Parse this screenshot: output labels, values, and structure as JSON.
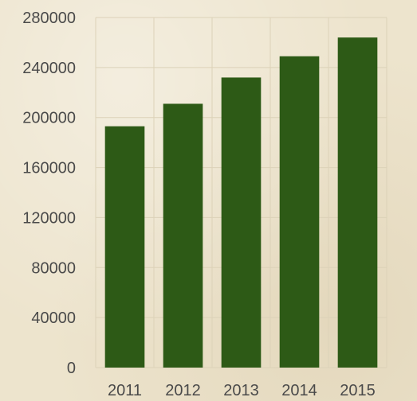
{
  "chart_data": {
    "type": "bar",
    "categories": [
      "2011",
      "2012",
      "2013",
      "2014",
      "2015"
    ],
    "values": [
      193000,
      211000,
      232000,
      249000,
      264000
    ],
    "title": "",
    "xlabel": "",
    "ylabel": "",
    "ylim": [
      0,
      280000
    ],
    "yticks": [
      "0",
      "40000",
      "80000",
      "120000",
      "160000",
      "200000",
      "240000",
      "280000"
    ],
    "grid": true,
    "colors": {
      "bar": "#2d5a16",
      "text": "#4a4a4a",
      "grid": "#dcd2b8"
    }
  }
}
